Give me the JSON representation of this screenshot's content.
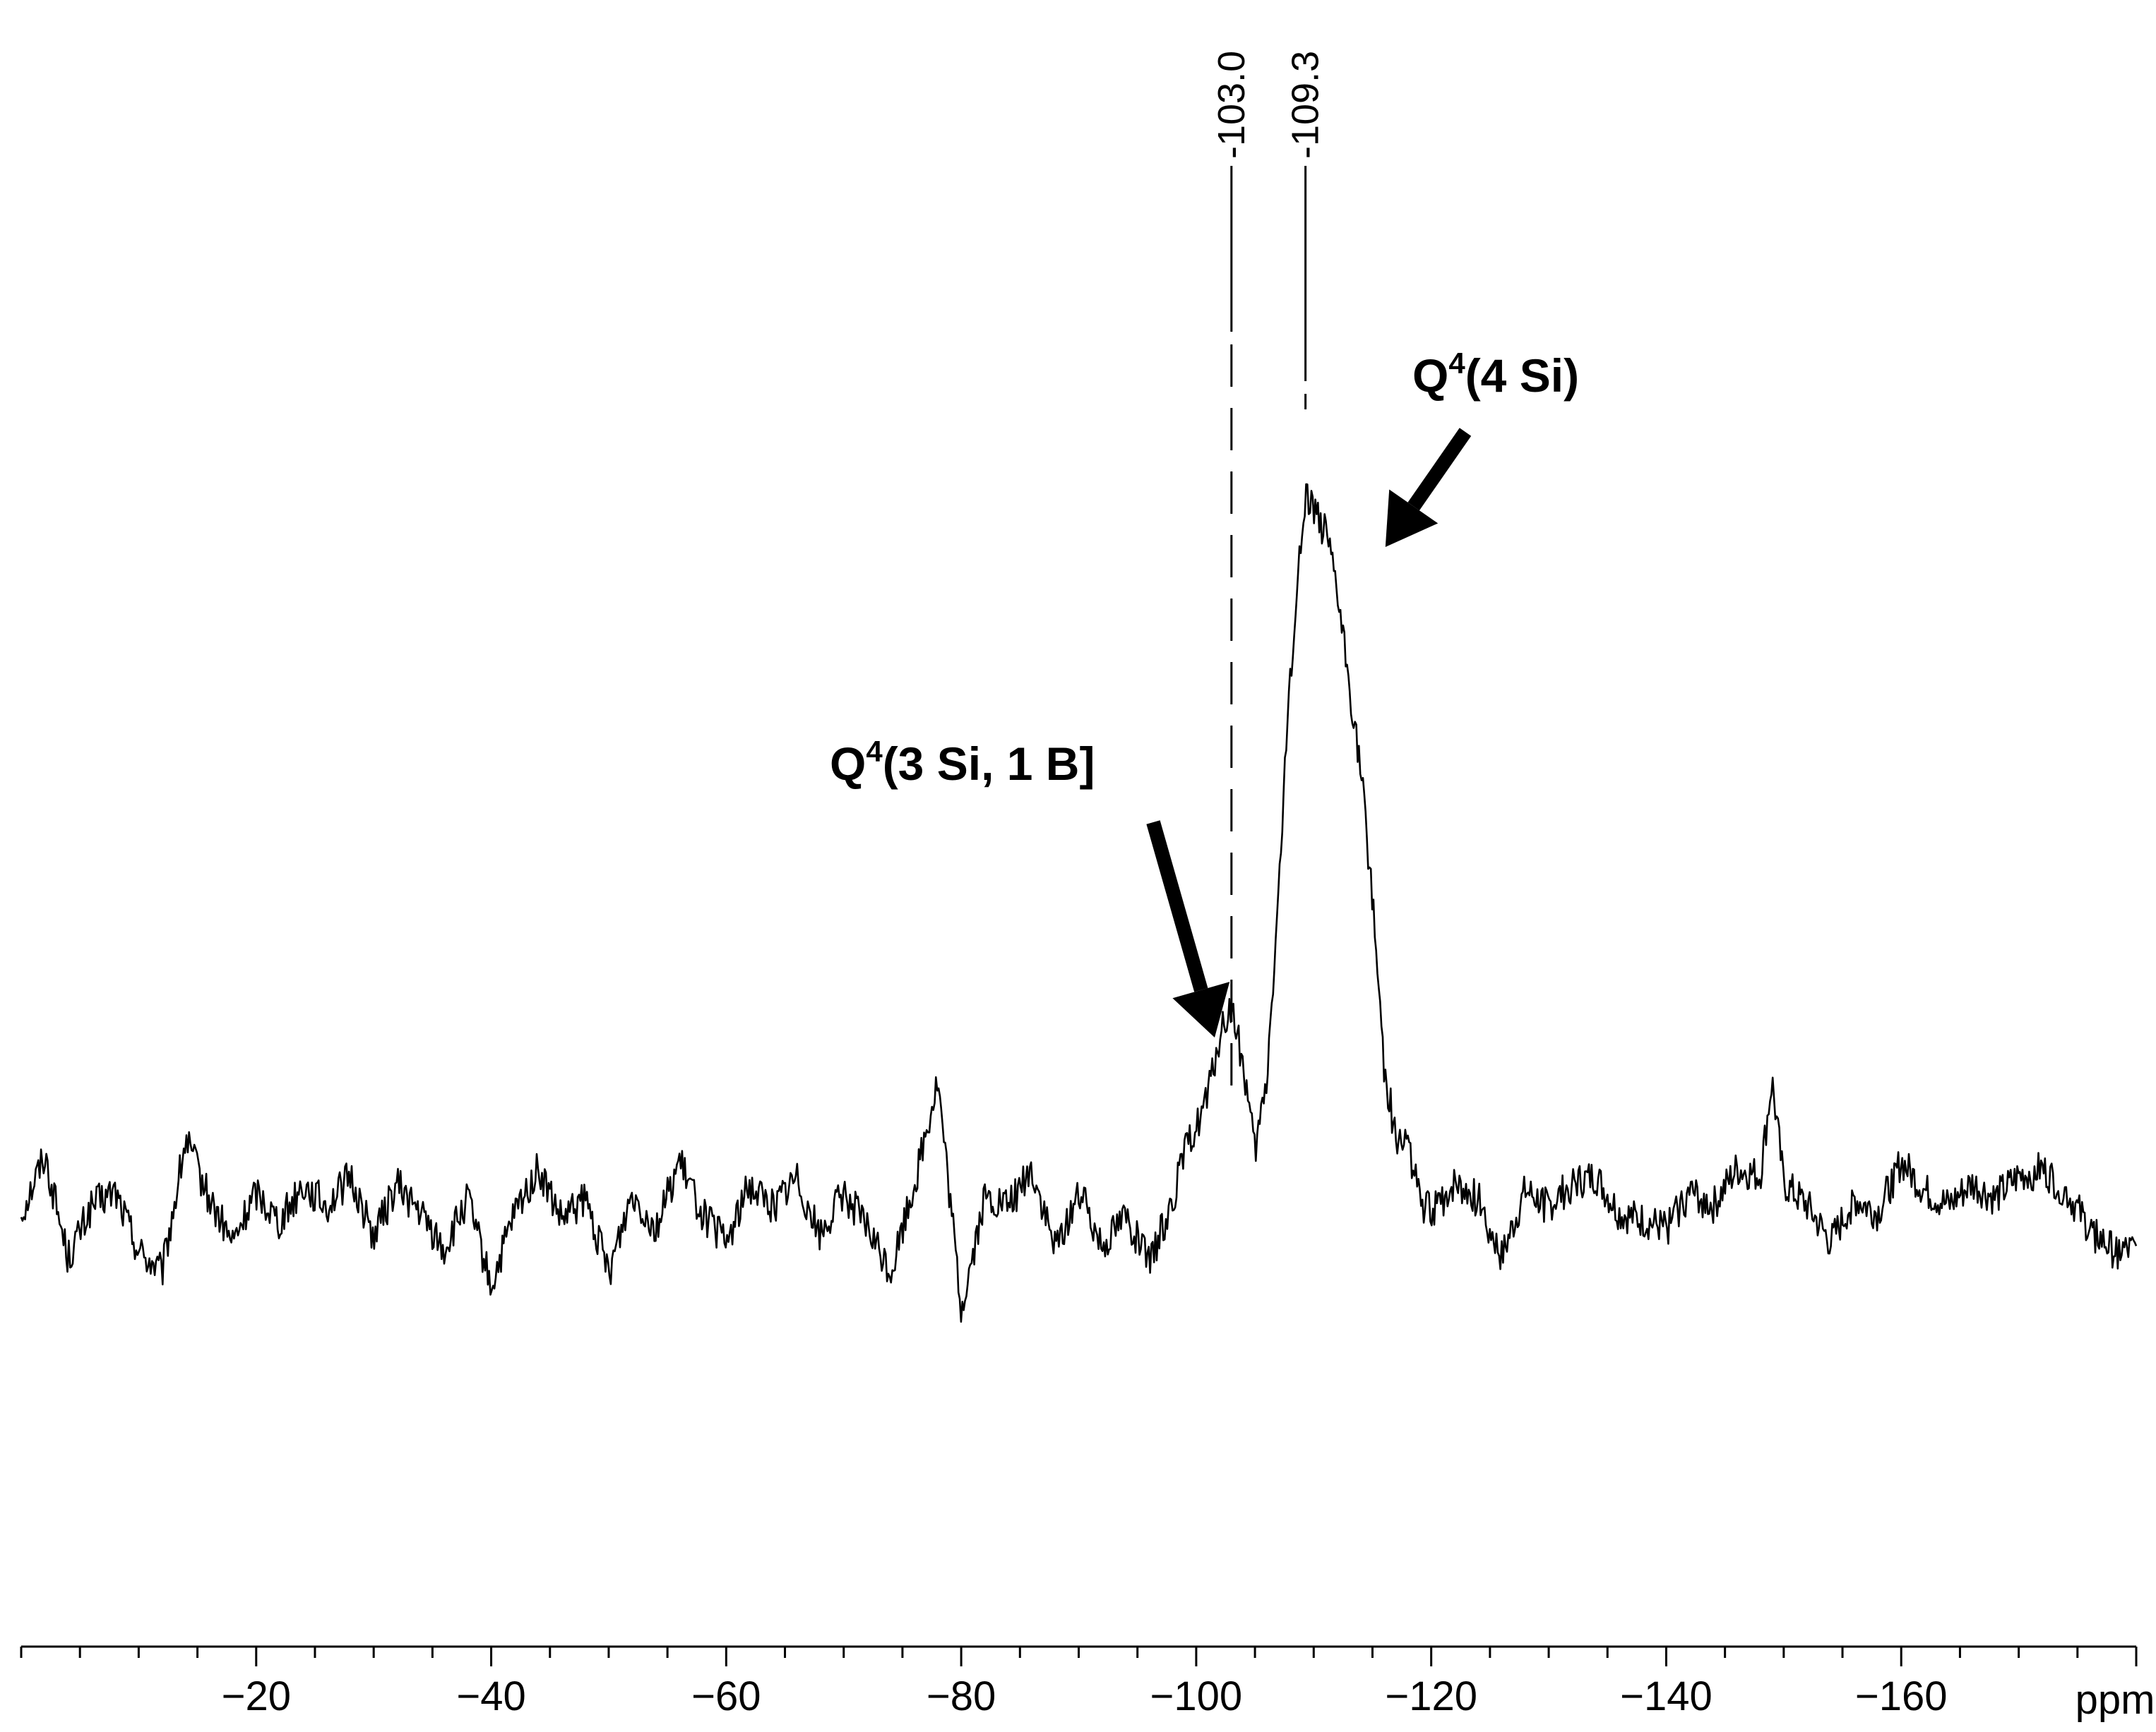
{
  "chart_data": {
    "type": "line",
    "title": "",
    "xlabel": "ppm",
    "ylabel": "",
    "xlim": [
      0,
      -180
    ],
    "ylim": [
      -0.2,
      1.1
    ],
    "x_reversed": true,
    "x_ticks_labeled": [
      -20,
      -40,
      -60,
      -80,
      -100,
      -120,
      -140,
      -160
    ],
    "x_tick_labels": [
      "−20",
      "−40",
      "−60",
      "−80",
      "−100",
      "−120",
      "−140",
      "−160"
    ],
    "x_unit_label": "ppm",
    "grid": false,
    "legend": "none",
    "peak_labels": [
      {
        "x": -103.0,
        "label": "-103.0"
      },
      {
        "x": -109.3,
        "label": "-109.3"
      }
    ],
    "annotations": [
      {
        "text": "Q",
        "sup": "4",
        "rest": "(4 Si)",
        "points_to_x": -115.5,
        "points_to_y": 0.77
      },
      {
        "text": "Q",
        "sup": "4",
        "rest": "(3 Si, 1 B]",
        "points_to_x": -101.5,
        "points_to_y": 0.3
      }
    ],
    "series": [
      {
        "x": [
          0,
          -2,
          -4,
          -6,
          -8,
          -10,
          -12,
          -14,
          -16,
          -18,
          -20,
          -22,
          -24,
          -26,
          -28,
          -30,
          -32,
          -34,
          -36,
          -38,
          -40,
          -42,
          -44,
          -46,
          -48,
          -50,
          -52,
          -54,
          -56,
          -58,
          -60,
          -62,
          -64,
          -66,
          -68,
          -70,
          -72,
          -74,
          -76,
          -78,
          -80,
          -82,
          -84,
          -86,
          -88,
          -90,
          -92,
          -94,
          -96,
          -98,
          -99,
          -100,
          -101,
          -102,
          -103,
          -104,
          -105,
          -106,
          -107,
          -108,
          -109.3,
          -110,
          -111,
          -112,
          -113,
          -114,
          -115,
          -116,
          -117,
          -118,
          -119,
          -120,
          -122,
          -124,
          -126,
          -128,
          -130,
          -132,
          -134,
          -136,
          -138,
          -140,
          -142,
          -144,
          -146,
          -148,
          -149,
          -150,
          -152,
          -154,
          -156,
          -158,
          -160,
          -162,
          -164,
          -166,
          -168,
          -170,
          -172,
          -174,
          -176,
          -178,
          -180
        ],
        "y": [
          0.02,
          0.1,
          -0.04,
          0.03,
          0.05,
          -0.03,
          -0.06,
          0.12,
          0.04,
          -0.02,
          0.05,
          0.01,
          0.06,
          0.03,
          0.07,
          -0.01,
          0.06,
          0.02,
          -0.03,
          0.04,
          -0.08,
          0.02,
          0.08,
          0.01,
          0.04,
          -0.06,
          0.05,
          0.0,
          0.09,
          0.02,
          -0.02,
          0.06,
          0.03,
          0.07,
          -0.01,
          0.05,
          0.0,
          -0.06,
          0.06,
          0.2,
          -0.11,
          0.04,
          0.03,
          0.08,
          -0.03,
          0.05,
          -0.02,
          0.02,
          -0.05,
          0.04,
          0.1,
          0.14,
          0.18,
          0.26,
          0.3,
          0.22,
          0.1,
          0.2,
          0.45,
          0.75,
          1.0,
          0.98,
          0.94,
          0.86,
          0.74,
          0.62,
          0.45,
          0.22,
          0.12,
          0.12,
          0.04,
          0.02,
          0.06,
          0.04,
          -0.04,
          0.05,
          0.03,
          0.06,
          0.07,
          0.02,
          0.01,
          0.0,
          0.05,
          0.03,
          0.08,
          0.07,
          0.2,
          0.06,
          0.03,
          -0.02,
          0.04,
          0.02,
          0.09,
          0.05,
          0.03,
          0.06,
          0.04,
          0.07,
          0.08,
          0.05,
          0.0,
          -0.03,
          -0.03
        ]
      }
    ]
  }
}
